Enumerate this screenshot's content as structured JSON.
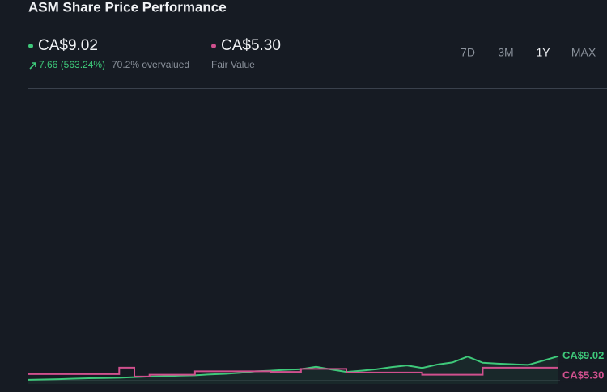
{
  "header": {
    "title": "ASM Share Price Performance",
    "price": "CA$9.02",
    "change": "7.66 (563.24%)",
    "valuation": "70.2% overvalued",
    "fair_value": "CA$5.30",
    "fair_value_label": "Fair Value"
  },
  "ranges": [
    "7D",
    "3M",
    "1Y",
    "MAX"
  ],
  "selected_range": 2,
  "chart_data": {
    "type": "line",
    "ylim": [
      0,
      96
    ],
    "series": [
      {
        "color": "#3ec97a",
        "values": [
          1.36,
          1.45,
          1.55,
          1.7,
          1.85,
          1.9,
          2.0,
          2.2,
          2.4,
          2.5,
          2.7,
          2.8,
          3.1,
          3.3,
          3.6,
          4.1,
          4.3,
          4.6,
          4.8,
          5.6,
          4.7,
          3.9,
          4.3,
          4.8,
          5.5,
          6.0,
          5.2,
          6.3,
          7.0,
          8.9,
          6.9,
          6.6,
          6.4,
          6.2,
          7.6,
          9.02
        ],
        "area": true
      },
      {
        "color": "#d0508e",
        "step": true,
        "values": [
          3.2,
          3.2,
          3.2,
          3.2,
          3.2,
          3.2,
          5.3,
          2.4,
          3.0,
          3.0,
          3.0,
          4.1,
          4.1,
          4.1,
          4.1,
          4.1,
          3.9,
          3.9,
          4.9,
          4.9,
          4.9,
          3.7,
          3.7,
          3.7,
          3.7,
          3.7,
          3.0,
          3.0,
          3.0,
          3.0,
          5.3,
          5.3,
          5.3,
          5.3,
          5.3,
          5.3
        ]
      }
    ]
  }
}
